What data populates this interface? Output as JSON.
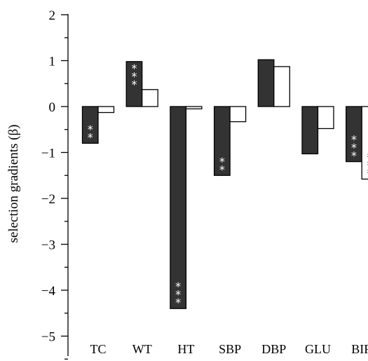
{
  "chart_data": {
    "type": "bar",
    "ylabel": "selection gradients (β)",
    "ylim": [
      -5.5,
      2
    ],
    "yticks": [
      {
        "value": 2,
        "label": "2"
      },
      {
        "value": 1,
        "label": "1"
      },
      {
        "value": 0,
        "label": "0"
      },
      {
        "value": -1,
        "label": "−1"
      },
      {
        "value": -2,
        "label": "−2"
      },
      {
        "value": -3,
        "label": "−3"
      },
      {
        "value": -4,
        "label": "−4"
      },
      {
        "value": -5,
        "label": "−5"
      }
    ],
    "minor_ticks": [
      1.5,
      0.5,
      -0.5,
      -1.5,
      -2.5,
      -3.5,
      -4.5,
      -5.5
    ],
    "categories": [
      "TC",
      "WT",
      "HT",
      "SBP",
      "DBP",
      "GLU",
      "BIR"
    ],
    "series": [
      {
        "fill": "#333333",
        "values": [
          -0.8,
          0.98,
          -4.4,
          -1.5,
          1.02,
          -1.03,
          -1.2
        ],
        "significance": [
          "**",
          "***",
          "***",
          "**",
          "",
          "",
          "***"
        ]
      },
      {
        "fill": "#ffffff",
        "values": [
          -0.13,
          0.37,
          -0.05,
          -0.33,
          0.87,
          -0.48,
          -1.58
        ],
        "significance": [
          "",
          "",
          "",
          "",
          "",
          "",
          "***"
        ]
      }
    ],
    "grid": false,
    "legend": "none"
  }
}
